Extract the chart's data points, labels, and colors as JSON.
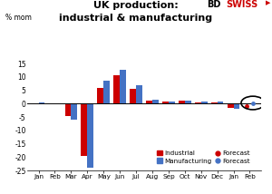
{
  "title1": "UK production:",
  "title2": "industrial & manufacturing",
  "ylabel": "% mom",
  "months": [
    "Jan",
    "Feb",
    "Mar",
    "Apr",
    "May",
    "Jun",
    "Jul",
    "Aug",
    "Sep",
    "Oct",
    "Nov",
    "Dec",
    "Jan",
    "Feb"
  ],
  "industrial": [
    0.2,
    0.2,
    -4.5,
    -19.5,
    6.0,
    10.5,
    5.5,
    1.2,
    0.8,
    1.0,
    0.5,
    0.5,
    -1.5,
    null
  ],
  "manufacturing": [
    0.4,
    0.3,
    -6.0,
    -24.0,
    8.7,
    12.8,
    7.0,
    1.5,
    0.9,
    1.1,
    0.7,
    0.7,
    -2.0,
    null
  ],
  "industrial_forecast": [
    null,
    null,
    null,
    null,
    null,
    null,
    null,
    null,
    null,
    null,
    null,
    null,
    null,
    -1.0
  ],
  "manufacturing_forecast": [
    null,
    null,
    null,
    null,
    null,
    null,
    null,
    null,
    null,
    null,
    null,
    null,
    null,
    0.3
  ],
  "bar_color_industrial": "#cc0000",
  "bar_color_manufacturing": "#4472c4",
  "dot_color_industrial_forecast": "#cc0000",
  "dot_color_manufacturing_forecast": "#4472c4",
  "ylim": [
    -25,
    17
  ],
  "yticks": [
    -25,
    -20,
    -15,
    -10,
    -5,
    0,
    5,
    10,
    15
  ],
  "circle_index": 13,
  "background_color": "#ffffff",
  "bar_width": 0.38
}
